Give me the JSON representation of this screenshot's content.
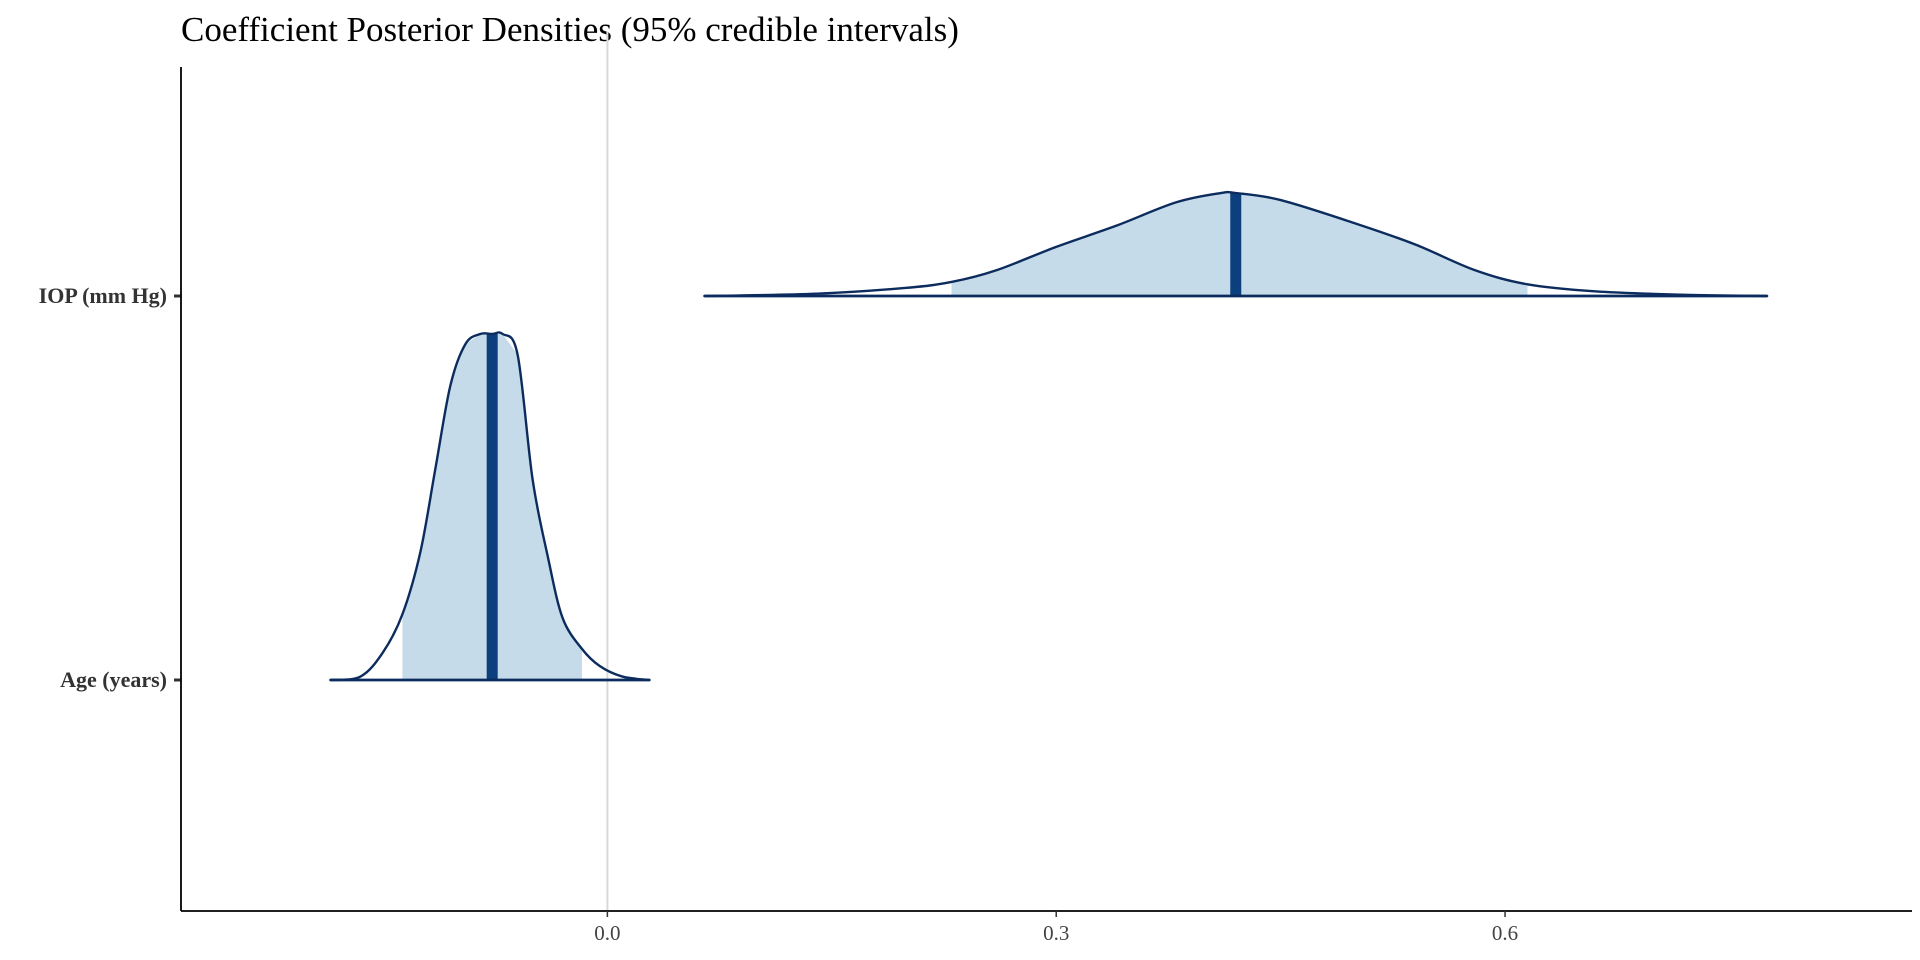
{
  "chart_data": {
    "type": "density",
    "title": "Coefficient Posterior Densities (95% credible intervals)",
    "xlabel": "",
    "ylabel": "",
    "xlim": [
      -0.285,
      0.872
    ],
    "x_ticks": [
      0.0,
      0.3,
      0.6
    ],
    "x_tick_labels": [
      "0.0",
      "0.3",
      "0.6"
    ],
    "reference_line_x": 0.0,
    "grid": false,
    "legend": "none",
    "categories": [
      "Age (years)",
      "IOP (mm Hg)"
    ],
    "series": [
      {
        "name": "Age (years)",
        "median": -0.077,
        "ci95": [
          -0.137,
          -0.017
        ],
        "range": [
          -0.185,
          0.028
        ],
        "density": [
          [
            -0.185,
            0.0
          ],
          [
            -0.165,
            0.01
          ],
          [
            -0.15,
            0.08
          ],
          [
            -0.137,
            0.19
          ],
          [
            -0.125,
            0.37
          ],
          [
            -0.115,
            0.61
          ],
          [
            -0.105,
            0.85
          ],
          [
            -0.095,
            0.97
          ],
          [
            -0.085,
            1.0
          ],
          [
            -0.077,
            1.0
          ],
          [
            -0.07,
            1.0
          ],
          [
            -0.06,
            0.94
          ],
          [
            -0.05,
            0.58
          ],
          [
            -0.04,
            0.36
          ],
          [
            -0.03,
            0.18
          ],
          [
            -0.017,
            0.09
          ],
          [
            -0.005,
            0.04
          ],
          [
            0.01,
            0.01
          ],
          [
            0.028,
            0.0
          ]
        ]
      },
      {
        "name": "IOP (mm Hg)",
        "median": 0.42,
        "ci95": [
          0.23,
          0.615
        ],
        "range": [
          0.065,
          0.775
        ],
        "density": [
          [
            0.065,
            0.0
          ],
          [
            0.14,
            0.02
          ],
          [
            0.2,
            0.07
          ],
          [
            0.23,
            0.12
          ],
          [
            0.26,
            0.22
          ],
          [
            0.3,
            0.42
          ],
          [
            0.34,
            0.6
          ],
          [
            0.38,
            0.8
          ],
          [
            0.41,
            0.88
          ],
          [
            0.42,
            0.88
          ],
          [
            0.45,
            0.82
          ],
          [
            0.5,
            0.62
          ],
          [
            0.54,
            0.44
          ],
          [
            0.58,
            0.22
          ],
          [
            0.615,
            0.1
          ],
          [
            0.66,
            0.04
          ],
          [
            0.72,
            0.01
          ],
          [
            0.775,
            0.0
          ]
        ]
      }
    ]
  },
  "colors": {
    "fill": "#c6dbea",
    "outline": "#0d2c5e",
    "median": "#0c3f7e",
    "zero_line": "#d9d9d9",
    "axis": "#000000"
  }
}
